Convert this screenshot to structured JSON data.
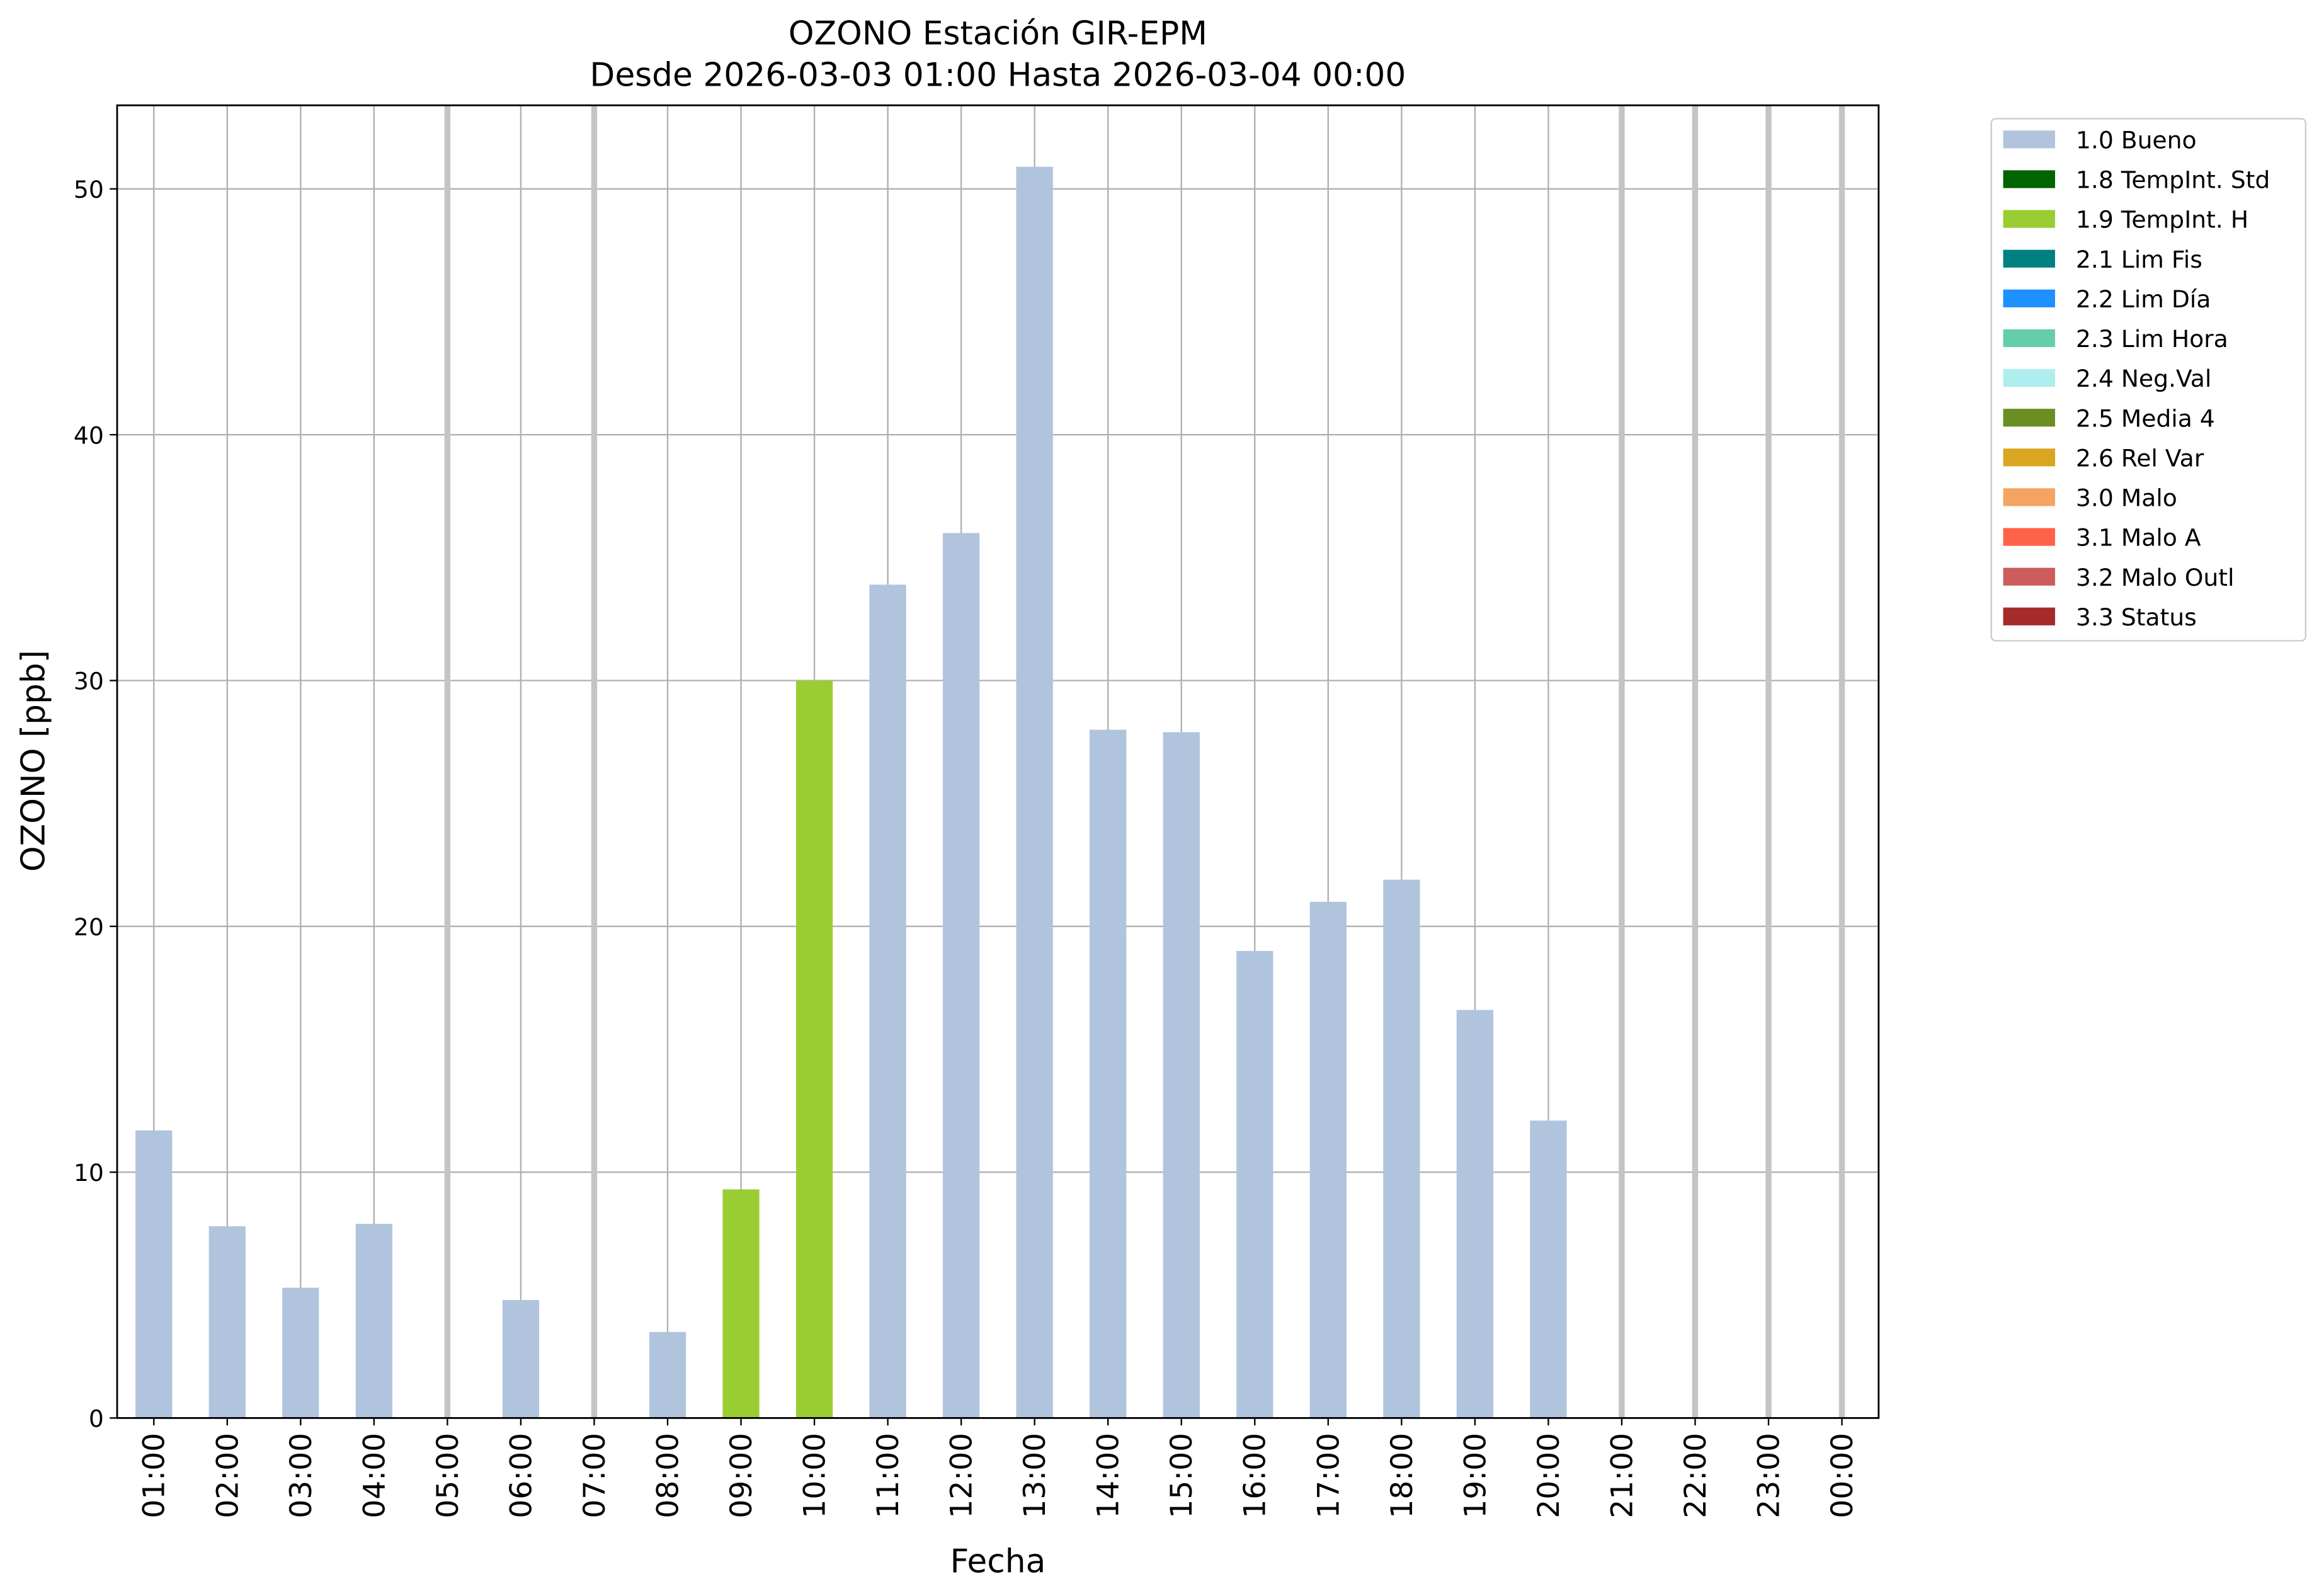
{
  "chart_data": {
    "type": "bar",
    "title": "OZONO Estación GIR-EPM",
    "subtitle": "Desde 2026-03-03 01:00 Hasta 2026-03-04 00:00",
    "y_label": "OZONO [ppb]",
    "x_label": "Fecha",
    "categories": [
      "01:00",
      "02:00",
      "03:00",
      "04:00",
      "05:00",
      "06:00",
      "07:00",
      "08:00",
      "09:00",
      "10:00",
      "11:00",
      "12:00",
      "13:00",
      "14:00",
      "15:00",
      "16:00",
      "17:00",
      "18:00",
      "19:00",
      "20:00",
      "21:00",
      "22:00",
      "23:00",
      "00:00"
    ],
    "series": [
      {
        "name": "1.0 Bueno",
        "color": "#b0c4de",
        "values": [
          11.7,
          7.8,
          5.3,
          7.9,
          null,
          4.8,
          null,
          3.5,
          null,
          null,
          33.9,
          36,
          50.9,
          28,
          27.9,
          19,
          21,
          21.9,
          16.6,
          12.1,
          null,
          null,
          null,
          null
        ]
      },
      {
        "name": "1.8 TempInt. Std",
        "color": "#006400",
        "values": [
          null,
          null,
          null,
          null,
          null,
          null,
          null,
          null,
          null,
          null,
          null,
          null,
          null,
          null,
          null,
          null,
          null,
          null,
          null,
          null,
          null,
          null,
          null,
          null
        ]
      },
      {
        "name": "1.9 TempInt. H",
        "color": "#9acd32",
        "values": [
          null,
          null,
          null,
          null,
          null,
          null,
          null,
          null,
          9.3,
          30,
          null,
          null,
          null,
          null,
          null,
          null,
          null,
          null,
          null,
          null,
          null,
          null,
          null,
          null
        ]
      },
      {
        "name": "2.1 Lim Fis",
        "color": "#008080",
        "values": [
          null,
          null,
          null,
          null,
          null,
          null,
          null,
          null,
          null,
          null,
          null,
          null,
          null,
          null,
          null,
          null,
          null,
          null,
          null,
          null,
          null,
          null,
          null,
          null
        ]
      },
      {
        "name": "2.2 Lim Día",
        "color": "#1e90ff",
        "values": [
          null,
          null,
          null,
          null,
          null,
          null,
          null,
          null,
          null,
          null,
          null,
          null,
          null,
          null,
          null,
          null,
          null,
          null,
          null,
          null,
          null,
          null,
          null,
          null
        ]
      },
      {
        "name": "2.3 Lim Hora",
        "color": "#66cdaa",
        "values": [
          null,
          null,
          null,
          null,
          null,
          null,
          null,
          null,
          null,
          null,
          null,
          null,
          null,
          null,
          null,
          null,
          null,
          null,
          null,
          null,
          null,
          null,
          null,
          null
        ]
      },
      {
        "name": "2.4 Neg.Val",
        "color": "#afeeee",
        "values": [
          null,
          null,
          null,
          null,
          null,
          null,
          null,
          null,
          null,
          null,
          null,
          null,
          null,
          null,
          null,
          null,
          null,
          null,
          null,
          null,
          null,
          null,
          null,
          null
        ]
      },
      {
        "name": "2.5 Media 4",
        "color": "#6b8e23",
        "values": [
          null,
          null,
          null,
          null,
          null,
          null,
          null,
          null,
          null,
          null,
          null,
          null,
          null,
          null,
          null,
          null,
          null,
          null,
          null,
          null,
          null,
          null,
          null,
          null
        ]
      },
      {
        "name": "2.6 Rel Var",
        "color": "#daa520",
        "values": [
          null,
          null,
          null,
          null,
          null,
          null,
          null,
          null,
          null,
          null,
          null,
          null,
          null,
          null,
          null,
          null,
          null,
          null,
          null,
          null,
          null,
          null,
          null,
          null
        ]
      },
      {
        "name": "3.0 Malo",
        "color": "#f4a460",
        "values": [
          null,
          null,
          null,
          null,
          null,
          null,
          null,
          null,
          null,
          null,
          null,
          null,
          null,
          null,
          null,
          null,
          null,
          null,
          null,
          null,
          null,
          null,
          null,
          null
        ]
      },
      {
        "name": "3.1 Malo A",
        "color": "#ff6347",
        "values": [
          null,
          null,
          null,
          null,
          null,
          null,
          null,
          null,
          null,
          null,
          null,
          null,
          null,
          null,
          null,
          null,
          null,
          null,
          null,
          null,
          null,
          null,
          null,
          null
        ]
      },
      {
        "name": "3.2 Malo Outl",
        "color": "#cd5c5c",
        "values": [
          null,
          null,
          null,
          null,
          null,
          null,
          null,
          null,
          null,
          null,
          null,
          null,
          null,
          null,
          null,
          null,
          null,
          null,
          null,
          null,
          null,
          null,
          null,
          null
        ]
      },
      {
        "name": "3.3 Status",
        "color": "#a52a2a",
        "values": [
          null,
          null,
          null,
          null,
          null,
          null,
          null,
          null,
          null,
          null,
          null,
          null,
          null,
          null,
          null,
          null,
          null,
          null,
          null,
          null,
          null,
          null,
          null,
          null
        ]
      }
    ],
    "ylim": [
      0,
      53.4
    ],
    "yticks": [
      0,
      10,
      20,
      30,
      40,
      50
    ],
    "grid": true,
    "legend": "outside-right"
  }
}
